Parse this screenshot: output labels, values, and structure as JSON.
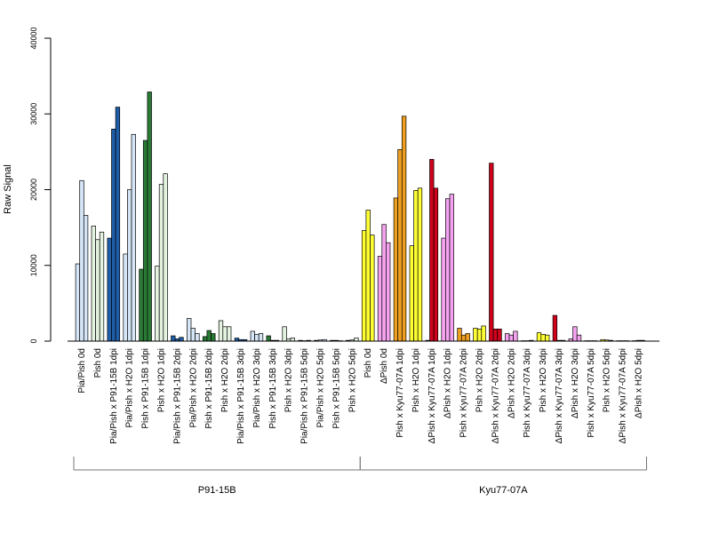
{
  "chart_data": {
    "type": "bar",
    "title": "",
    "xlabel": "",
    "ylabel": "Raw Signal",
    "ylim": [
      0,
      40000
    ],
    "yticks": [
      0,
      10000,
      20000,
      30000,
      40000
    ],
    "categories": [
      "Pia/Pish 0d",
      "Pish 0d",
      "Pia/Pish x P91-15B 1dpi",
      "Pia/Pish x H2O 1dpi",
      "Pish x P91-15B 1dpi",
      "Pish x H2O 1dpi",
      "Pia/Pish x P91-15B 2dpi",
      "Pia/Pish x H2O 2dpi",
      "Pish x P91-15B 2dpi",
      "Pish x H2O 2dpi",
      "Pia/Pish x P91-15B 3dpi",
      "Pia/Pish x H2O 3dpi",
      "Pish x P91-15B 3dpi",
      "Pish x H2O 3dpi",
      "Pia/Pish x P91-15B 5dpi",
      "Pia/Pish x H2O 5dpi",
      "Pish x P91-15B 5dpi",
      "Pish x H2O 5dpi",
      "Pish 0d",
      "ΔPish 0d",
      "Pish x Kyu77-07A 1dpi",
      "Pish x H2O 1dpi",
      "ΔPish x Kyu77-07A 1dpi",
      "ΔPish x H2O 1dpi",
      "Pish x Kyu77-07A 2dpi",
      "Pish x H2O 2dpi",
      "ΔPish x Kyu77-07A 2dpi",
      "ΔPish x H2O 2dpi",
      "Pish x Kyu77-07A 3dpi",
      "Pish x H2O 3dpi",
      "ΔPish x Kyu77-07A 3dpi",
      "ΔPish x H2O 3dpi",
      "Pish x Kyu77-07A 5dpi",
      "Pish x H2O 5dpi",
      "ΔPish x Kyu77-07A 5dpi",
      "ΔPish x H2O 5dpi"
    ],
    "group_colors": [
      "#d6e6f7",
      "#e4f2e0",
      "#1f5ea8",
      "#d6e6f7",
      "#2a7a36",
      "#e4f2e0",
      "#1f5ea8",
      "#d6e6f7",
      "#2a7a36",
      "#e4f2e0",
      "#1f5ea8",
      "#d6e6f7",
      "#2a7a36",
      "#e4f2e0",
      "#1f5ea8",
      "#d6e6f7",
      "#2a7a36",
      "#e4f2e0",
      "#ffff33",
      "#f5a3f0",
      "#f0a020",
      "#ffff33",
      "#d0021b",
      "#f5a3f0",
      "#f0a020",
      "#ffff33",
      "#d0021b",
      "#f5a3f0",
      "#f0a020",
      "#ffff33",
      "#d0021b",
      "#f5a3f0",
      "#f0a020",
      "#ffff33",
      "#d0021b",
      "#f5a3f0"
    ],
    "values": [
      [
        10200,
        21200,
        16600
      ],
      [
        15200,
        13400,
        14400
      ],
      [
        13600,
        28000,
        30900
      ],
      [
        11500,
        20000,
        27300
      ],
      [
        9500,
        26500,
        32900
      ],
      [
        9900,
        20700,
        22100
      ],
      [
        700,
        300,
        500
      ],
      [
        3000,
        1700,
        1000
      ],
      [
        600,
        1400,
        1000
      ],
      [
        2700,
        1900,
        1900
      ],
      [
        400,
        200,
        200
      ],
      [
        1300,
        900,
        1000
      ],
      [
        700,
        100,
        100
      ],
      [
        1900,
        300,
        400
      ],
      [
        100,
        50,
        100
      ],
      [
        100,
        150,
        200
      ],
      [
        100,
        100,
        50
      ],
      [
        100,
        150,
        400
      ],
      [
        14600,
        17300,
        14000
      ],
      [
        11200,
        15400,
        13000
      ],
      [
        18900,
        25300,
        29700
      ],
      [
        12600,
        19900,
        20200
      ],
      [
        100,
        24000,
        20200
      ],
      [
        13600,
        18800,
        19400
      ],
      [
        1700,
        800,
        1000
      ],
      [
        1700,
        1600,
        2000
      ],
      [
        23500,
        1600,
        1600
      ],
      [
        1000,
        800,
        1300
      ],
      [
        50,
        50,
        100
      ],
      [
        1100,
        900,
        800
      ],
      [
        3400,
        100,
        100
      ],
      [
        300,
        1900,
        800
      ],
      [
        50,
        50,
        50
      ],
      [
        200,
        150,
        100
      ],
      [
        50,
        50,
        50
      ],
      [
        50,
        100,
        100
      ]
    ],
    "brackets": [
      {
        "label": "P91-15B",
        "first": 0,
        "last": 17
      },
      {
        "label": "Kyu77-07A",
        "first": 18,
        "last": 35
      }
    ],
    "grid": false,
    "legend": "none"
  }
}
